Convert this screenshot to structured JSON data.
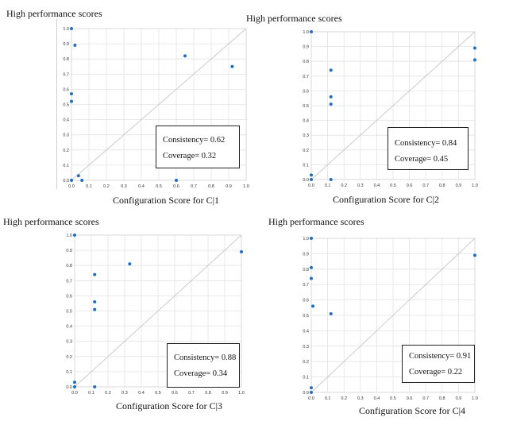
{
  "chart_data": [
    {
      "type": "scatter",
      "title": "High performance scores",
      "xlabel": "Configuration Score for C|1",
      "xlim": [
        0,
        1
      ],
      "ylim": [
        0,
        1
      ],
      "ticks": [
        "0.0",
        "0.1",
        "0.2",
        "0.3",
        "0.4",
        "0.5",
        "0.6",
        "0.7",
        "0.8",
        "0.9",
        "1.0"
      ],
      "grid": true,
      "diagonal": true,
      "points": [
        [
          0.0,
          1.0
        ],
        [
          0.02,
          0.89
        ],
        [
          0.65,
          0.82
        ],
        [
          0.92,
          0.75
        ],
        [
          0.0,
          0.57
        ],
        [
          0.0,
          0.52
        ],
        [
          0.04,
          0.03
        ],
        [
          0.06,
          0.0
        ],
        [
          0.0,
          0.0
        ],
        [
          0.6,
          0.0
        ]
      ],
      "stats": {
        "consistency": "Consistency= 0.62",
        "coverage": "Coverage= 0.32"
      }
    },
    {
      "type": "scatter",
      "title": "High performance scores",
      "xlabel": "Configuration Score for C|2",
      "xlim": [
        0,
        1
      ],
      "ylim": [
        0,
        1
      ],
      "ticks": [
        "0.0",
        "0.1",
        "0.2",
        "0.3",
        "0.4",
        "0.5",
        "0.6",
        "0.7",
        "0.8",
        "0.9",
        "1.0"
      ],
      "grid": true,
      "diagonal": true,
      "points": [
        [
          0.0,
          1.0
        ],
        [
          0.12,
          0.74
        ],
        [
          0.12,
          0.56
        ],
        [
          0.12,
          0.51
        ],
        [
          0.0,
          0.03
        ],
        [
          0.0,
          0.0
        ],
        [
          0.12,
          0.0
        ],
        [
          1.0,
          0.89
        ],
        [
          1.0,
          0.81
        ]
      ],
      "stats": {
        "consistency": "Consistency= 0.84",
        "coverage": "Coverage= 0.45"
      }
    },
    {
      "type": "scatter",
      "title": "High performance scores",
      "xlabel": "Configuration Score for C|3",
      "xlim": [
        0,
        1
      ],
      "ylim": [
        0,
        1
      ],
      "ticks": [
        "0.0",
        "0.1",
        "0.2",
        "0.3",
        "0.4",
        "0.5",
        "0.6",
        "0.7",
        "0.8",
        "0.9",
        "1.0"
      ],
      "grid": true,
      "diagonal": true,
      "points": [
        [
          0.0,
          1.0
        ],
        [
          0.12,
          0.74
        ],
        [
          0.12,
          0.56
        ],
        [
          0.12,
          0.51
        ],
        [
          0.33,
          0.81
        ],
        [
          1.0,
          0.89
        ],
        [
          0.0,
          0.03
        ],
        [
          0.0,
          0.0
        ],
        [
          0.12,
          0.0
        ]
      ],
      "stats": {
        "consistency": "Consistency= 0.88",
        "coverage": "Coverage= 0.34"
      }
    },
    {
      "type": "scatter",
      "title": "High performance scores",
      "xlabel": "Configuration Score for C|4",
      "xlim": [
        0,
        1
      ],
      "ylim": [
        0,
        1
      ],
      "ticks": [
        "0.0",
        "0.1",
        "0.2",
        "0.3",
        "0.4",
        "0.5",
        "0.6",
        "0.7",
        "0.8",
        "0.9",
        "1.0"
      ],
      "grid": true,
      "diagonal": true,
      "points": [
        [
          0.0,
          1.0
        ],
        [
          0.0,
          0.81
        ],
        [
          0.0,
          0.74
        ],
        [
          0.01,
          0.56
        ],
        [
          0.12,
          0.51
        ],
        [
          1.0,
          0.89
        ],
        [
          0.0,
          0.03
        ],
        [
          0.0,
          0.0
        ]
      ],
      "stats": {
        "consistency": "Consistency= 0.91",
        "coverage": "Coverage= 0.22"
      }
    }
  ],
  "colors": {
    "point": "#1f6fc6",
    "grid": "#e3e3e3",
    "diagonal": "#c8c8c8",
    "frame": "#d4d4d4",
    "tick": "#333333"
  }
}
